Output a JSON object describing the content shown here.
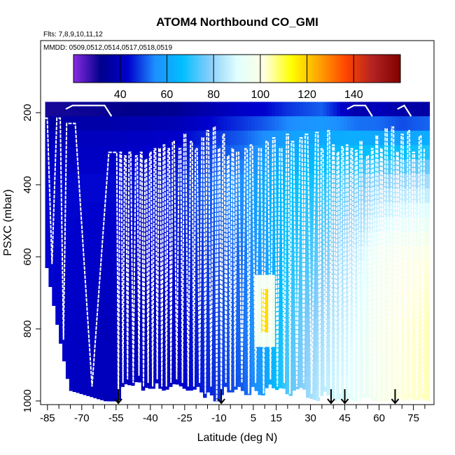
{
  "chart_data": {
    "type": "heatmap",
    "title": "ATOM4 Northbound CO_GMI",
    "flights_label": "Flts: 7,8,9,10,11,12",
    "dates_label": "MMDD: 0509,0512,0514,0517,0518,0519",
    "xlabel": "Latitude (deg N)",
    "ylabel": "PSXC (mbar)",
    "xlim": [
      -88,
      84
    ],
    "ylim": [
      1010,
      0
    ],
    "x_ticks": [
      -85,
      -70,
      -55,
      -40,
      -25,
      -10,
      5,
      15,
      30,
      45,
      60,
      75
    ],
    "x_minor_ticks": [
      -80,
      -75,
      -65,
      -60,
      -50,
      -45,
      -35,
      -30,
      -20,
      -15,
      -5,
      0,
      10,
      20,
      25,
      35,
      40,
      50,
      55,
      65,
      70,
      80
    ],
    "y_ticks": [
      200,
      400,
      600,
      800,
      1000
    ],
    "colorbar": {
      "min": 20,
      "max": 160,
      "ticks": [
        40,
        60,
        80,
        100,
        120,
        140
      ],
      "colors": [
        "#8a2be2",
        "#00008b",
        "#0000cd",
        "#1e90ff",
        "#00bfff",
        "#87cefa",
        "#e0ffff",
        "#ffffe0",
        "#ffff00",
        "#ffa500",
        "#ff4500",
        "#b22222",
        "#800000"
      ]
    },
    "field": {
      "lat_knots": [
        -88,
        -60,
        -30,
        0,
        10,
        20,
        35,
        50,
        60,
        70,
        84
      ],
      "press_knots": [
        170,
        250,
        400,
        600,
        800,
        1000
      ],
      "values": [
        [
          26,
          28,
          30,
          40,
          40,
          44,
          48,
          30,
          34,
          30,
          28
        ],
        [
          40,
          40,
          42,
          50,
          54,
          58,
          60,
          60,
          58,
          56,
          60
        ],
        [
          44,
          44,
          46,
          56,
          62,
          66,
          70,
          76,
          80,
          82,
          84
        ],
        [
          44,
          42,
          44,
          52,
          58,
          68,
          76,
          86,
          96,
          100,
          102
        ],
        [
          44,
          40,
          42,
          52,
          60,
          72,
          82,
          90,
          98,
          102,
          104
        ],
        [
          42,
          40,
          42,
          50,
          58,
          74,
          86,
          92,
          98,
          102,
          104
        ]
      ],
      "plume": {
        "lat_range": [
          8,
          12
        ],
        "press_range": [
          710,
          810
        ],
        "value": 118
      }
    },
    "flight_track": {
      "turn_lats": [
        -86,
        -80,
        -76,
        -55,
        -53,
        -51,
        -49,
        -46,
        -44,
        -42,
        -40,
        -38,
        -36,
        -34,
        -32,
        -30,
        -27,
        -25,
        -22,
        -20,
        -17,
        -15,
        -12,
        -10,
        -8,
        -6,
        -4,
        -2,
        2,
        4,
        8,
        11,
        14,
        17,
        20,
        22,
        26,
        28,
        33,
        35,
        38,
        40,
        42,
        44,
        46,
        48,
        50,
        52,
        55,
        57,
        59,
        61,
        63,
        66,
        68,
        70,
        73,
        75,
        78,
        80
      ],
      "top_press": [
        215,
        215,
        230,
        310,
        310,
        320,
        310,
        320,
        310,
        330,
        310,
        300,
        300,
        290,
        300,
        280,
        300,
        260,
        280,
        300,
        270,
        250,
        240,
        300,
        260,
        320,
        300,
        310,
        300,
        290,
        300,
        280,
        270,
        300,
        260,
        280,
        270,
        260,
        255,
        300,
        250,
        290,
        310,
        295,
        290,
        300,
        305,
        280,
        320,
        300,
        265,
        300,
        245,
        240,
        310,
        260,
        250,
        310,
        265,
        300
      ],
      "bottom_press": [
        620,
        830,
        960,
        1000,
        950,
        940,
        950,
        930,
        960,
        950,
        960,
        940,
        960,
        960,
        950,
        940,
        950,
        960,
        960,
        950,
        980,
        960,
        1000,
        980,
        950,
        970,
        960,
        950,
        980,
        950,
        980,
        940,
        960,
        950,
        980,
        960,
        950,
        980,
        990,
        960,
        980,
        990,
        980,
        990,
        980,
        990,
        1000,
        980,
        980,
        990,
        1000,
        990,
        1000,
        990,
        980,
        990,
        980,
        990,
        980,
        990
      ],
      "high_cruise_press": 180
    },
    "arrows_lat": [
      -54,
      -9,
      39,
      45,
      67
    ]
  }
}
